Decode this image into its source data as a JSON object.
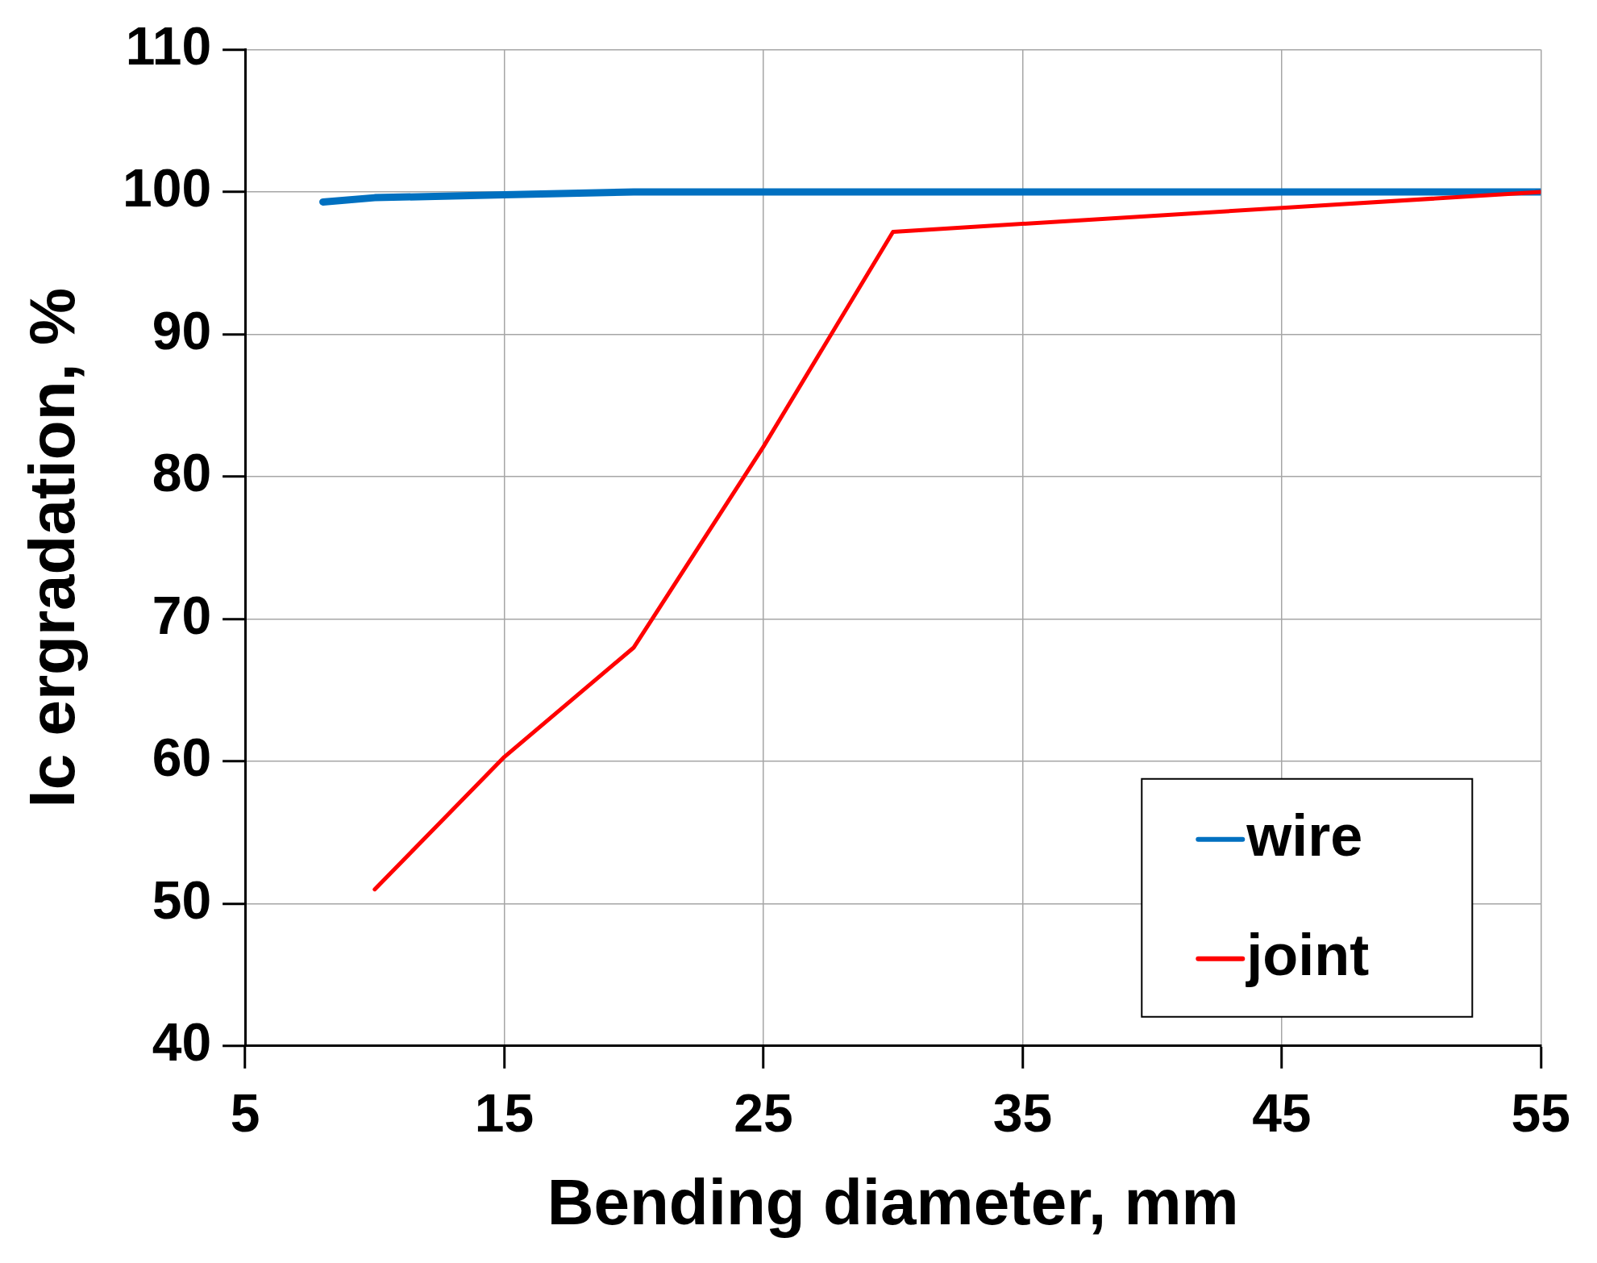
{
  "chart_data": {
    "type": "line",
    "xlabel": "Bending diameter, mm",
    "ylabel": "Ic ergradation, %",
    "series": [
      {
        "name": "wire",
        "color": "#0070c0",
        "x": [
          8,
          10,
          15,
          20,
          25,
          30,
          55
        ],
        "values": [
          99.3,
          99.6,
          99.8,
          100,
          100,
          100,
          100
        ]
      },
      {
        "name": "joint",
        "color": "#ff0000",
        "x": [
          10,
          15,
          20,
          25,
          30,
          55
        ],
        "values": [
          51,
          60.3,
          68,
          82.1,
          97.2,
          100
        ]
      }
    ],
    "xlim": [
      5,
      55
    ],
    "xticks": [
      5,
      15,
      25,
      35,
      45,
      55
    ],
    "ylim": [
      40,
      110
    ],
    "yticks": [
      40,
      50,
      60,
      70,
      80,
      90,
      100,
      110
    ],
    "grid": true,
    "legend": "bottom right",
    "marker": "none",
    "line_style": "solid"
  }
}
